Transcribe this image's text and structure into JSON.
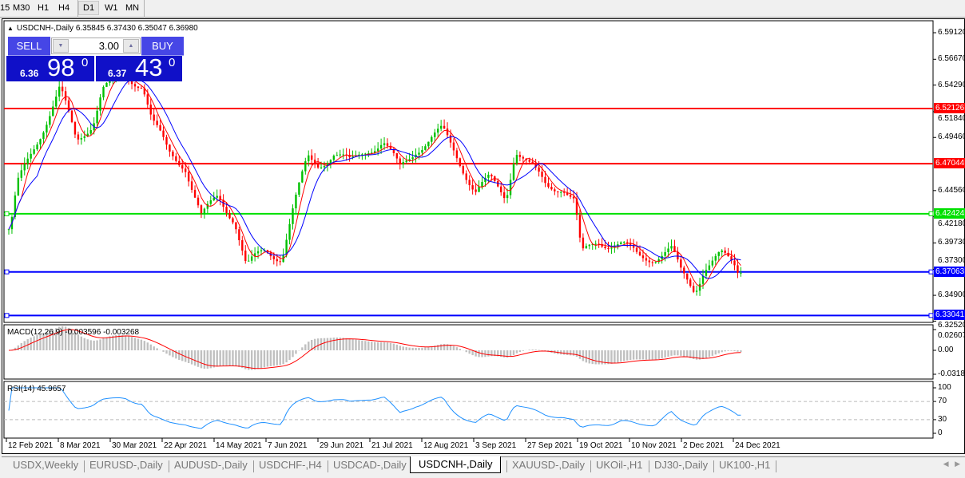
{
  "toolbar": {
    "timeframes": [
      "15",
      "M30",
      "H1",
      "H4",
      "D1",
      "W1",
      "MN"
    ],
    "active": "D1"
  },
  "chart": {
    "header": "USDCNH-,Daily  6.35845 6.37430 6.35047 6.36980",
    "trade_panel": {
      "sell_label": "SELL",
      "buy_label": "BUY",
      "lot": "3.00",
      "sell_small": "6.36",
      "sell_big": "98",
      "sell_sup": "0",
      "buy_small": "6.37",
      "buy_big": "43",
      "buy_sup": "0"
    },
    "price_ticks": [
      "6.59120",
      "6.56670",
      "6.54290",
      "6.51840",
      "6.49460",
      "6.44560",
      "6.42180",
      "6.39730",
      "6.37300",
      "6.34900",
      "6.32520"
    ],
    "levels": [
      {
        "price": "6.52126",
        "color": "#ff0000"
      },
      {
        "price": "6.47044",
        "color": "#ff0000"
      },
      {
        "price": "6.42424",
        "color": "#00e000"
      },
      {
        "price": "6.37063",
        "color": "#0000ff"
      },
      {
        "price": "6.33041",
        "color": "#0000ff"
      }
    ],
    "date_ticks": [
      "12 Feb 2021",
      "8 Mar 2021",
      "30 Mar 2021",
      "22 Apr 2021",
      "14 May 2021",
      "7 Jun 2021",
      "29 Jun 2021",
      "21 Jul 2021",
      "12 Aug 2021",
      "3 Sep 2021",
      "27 Sep 2021",
      "19 Oct 2021",
      "10 Nov 2021",
      "2 Dec 2021",
      "24 Dec 2021"
    ],
    "macd": {
      "label": "MACD(12,26,9) -0.003596 -0.003268",
      "ticks": [
        "0.02607",
        "0.00",
        "-0.03187"
      ]
    },
    "rsi": {
      "label": "RSI(14) 45.9657",
      "ticks": [
        "100",
        "70",
        "30",
        "0"
      ]
    },
    "colors": {
      "bull": "#00c000",
      "bear": "#ff0000",
      "ma_fast": "#ff0000",
      "ma_slow": "#0000ff",
      "macd_hist": "#c0c0c0",
      "macd_signal": "#ff0000",
      "rsi_line": "#1e90ff"
    }
  },
  "chart_data": {
    "type": "candlestick",
    "symbol": "USDCNH-",
    "timeframe": "Daily",
    "ylim": [
      6.3252,
      6.5912
    ],
    "approx_close_path": [
      [
        "2021-02-15",
        6.41
      ],
      [
        "2021-02-18",
        6.45
      ],
      [
        "2021-02-26",
        6.49
      ],
      [
        "2021-03-08",
        6.54
      ],
      [
        "2021-03-15",
        6.49
      ],
      [
        "2021-03-22",
        6.51
      ],
      [
        "2021-03-26",
        6.54
      ],
      [
        "2021-04-05",
        6.55
      ],
      [
        "2021-04-12",
        6.545
      ],
      [
        "2021-04-16",
        6.51
      ],
      [
        "2021-04-23",
        6.48
      ],
      [
        "2021-04-30",
        6.47
      ],
      [
        "2021-05-07",
        6.42
      ],
      [
        "2021-05-14",
        6.44
      ],
      [
        "2021-05-21",
        6.42
      ],
      [
        "2021-05-26",
        6.375
      ],
      [
        "2021-06-03",
        6.39
      ],
      [
        "2021-06-10",
        6.385
      ],
      [
        "2021-06-15",
        6.43
      ],
      [
        "2021-06-21",
        6.475
      ],
      [
        "2021-06-25",
        6.47
      ],
      [
        "2021-07-02",
        6.48
      ],
      [
        "2021-07-09",
        6.47
      ],
      [
        "2021-07-16",
        6.485
      ],
      [
        "2021-07-23",
        6.49
      ],
      [
        "2021-07-30",
        6.465
      ],
      [
        "2021-08-06",
        6.485
      ],
      [
        "2021-08-17",
        6.5
      ],
      [
        "2021-08-24",
        6.475
      ],
      [
        "2021-08-31",
        6.445
      ],
      [
        "2021-09-06",
        6.455
      ],
      [
        "2021-09-13",
        6.44
      ],
      [
        "2021-09-17",
        6.485
      ],
      [
        "2021-09-24",
        6.465
      ],
      [
        "2021-09-30",
        6.45
      ],
      [
        "2021-10-07",
        6.45
      ],
      [
        "2021-10-12",
        6.435
      ],
      [
        "2021-10-15",
        6.385
      ],
      [
        "2021-10-22",
        6.4
      ],
      [
        "2021-11-01",
        6.395
      ],
      [
        "2021-11-08",
        6.385
      ],
      [
        "2021-11-15",
        6.385
      ],
      [
        "2021-11-22",
        6.39
      ],
      [
        "2021-11-26",
        6.37
      ],
      [
        "2021-12-02",
        6.355
      ],
      [
        "2021-12-06",
        6.375
      ],
      [
        "2021-12-13",
        6.385
      ],
      [
        "2021-12-20",
        6.375
      ],
      [
        "2021-12-31",
        6.3698
      ]
    ]
  },
  "tabs": [
    "USDX,Weekly",
    "EURUSD-,Daily",
    "AUDUSD-,Daily",
    "USDCHF-,H4",
    "USDCAD-,Daily",
    "USDCNH-,Daily",
    "XAUUSD-,Daily",
    "UKOil-,H1",
    "DJ30-,Daily",
    "UK100-,H1"
  ],
  "active_tab": "USDCNH-,Daily"
}
